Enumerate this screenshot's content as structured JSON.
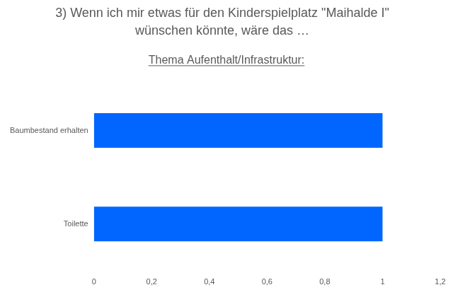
{
  "chart_data": {
    "type": "bar",
    "orientation": "horizontal",
    "title": [
      "3) Wenn ich mir etwas für den Kinderspielplatz \"Maihalde I\"",
      "wünschen könnte, wäre das …"
    ],
    "subtitle": "Thema Aufenthalt/Infrastruktur:",
    "categories": [
      "Baumbestand erhalten",
      "Toilette"
    ],
    "values": [
      1,
      1
    ],
    "color": "#0066ff",
    "xlim": [
      0,
      1.2
    ],
    "xticks": [
      0,
      {
        "value": 0.2,
        "label": "0,2"
      },
      {
        "value": 0.4,
        "label": "0,4"
      },
      {
        "value": 0.6,
        "label": "0,6"
      },
      {
        "value": 0.8,
        "label": "0,8"
      },
      1,
      {
        "value": 1.2,
        "label": "1,2"
      }
    ],
    "grid": false
  }
}
